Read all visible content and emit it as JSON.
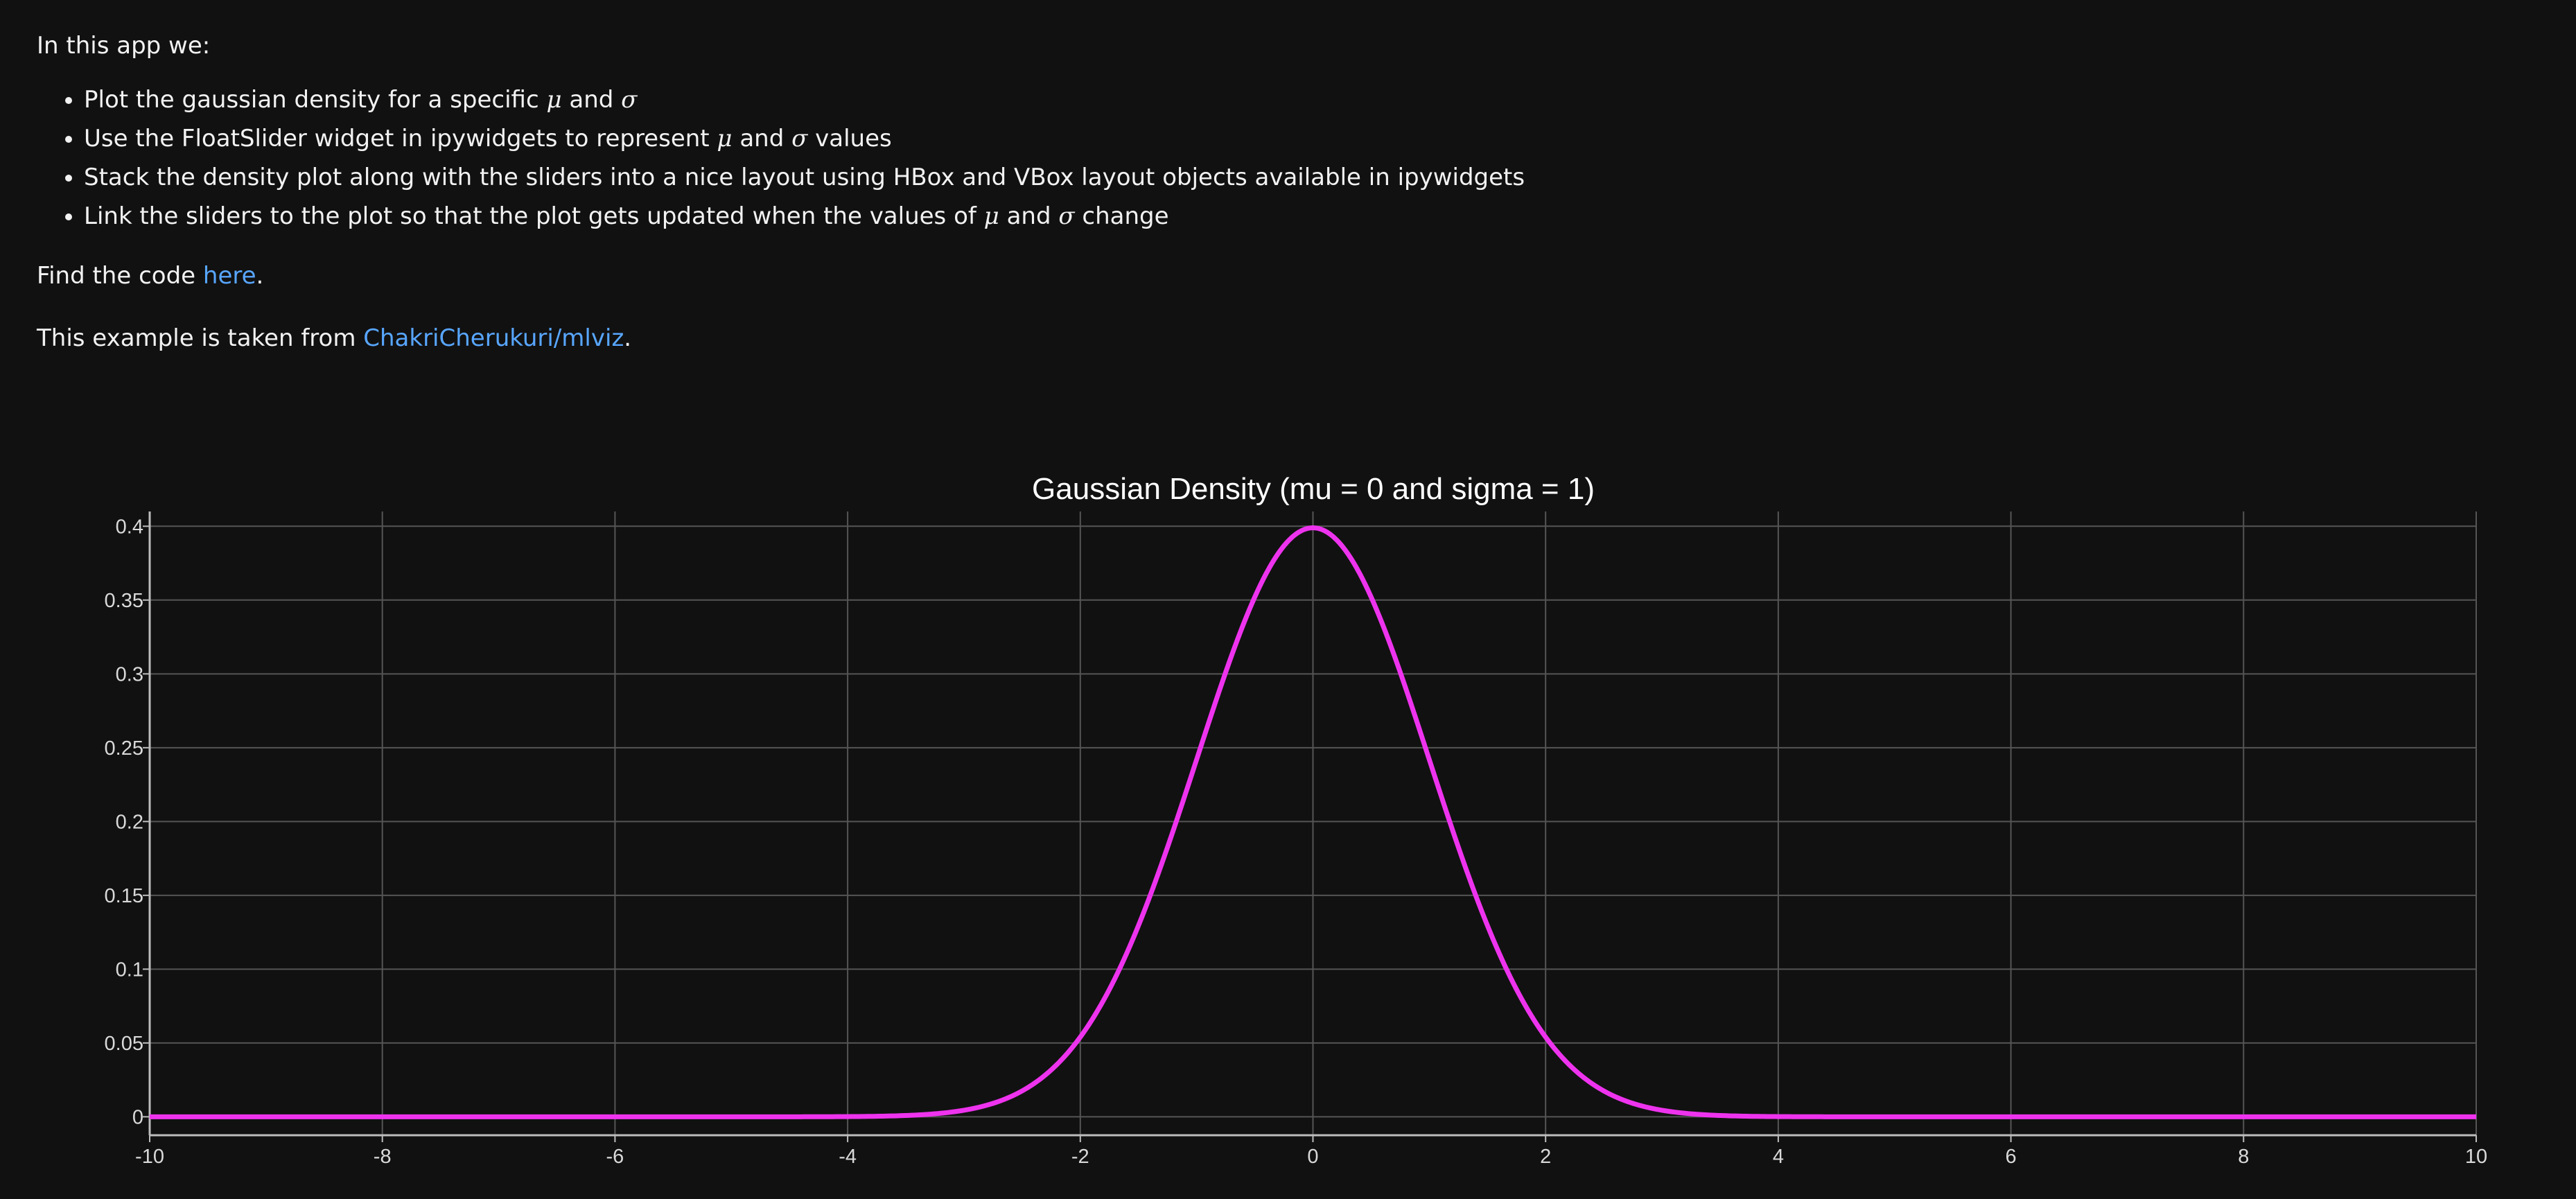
{
  "text": {
    "intro": "In this app we:",
    "bullets": [
      {
        "pre": "Plot the gaussian density for a specific ",
        "m1": "μ",
        "mid": " and ",
        "m2": "σ",
        "post": ""
      },
      {
        "pre": "Use the FloatSlider widget in ipywidgets to represent ",
        "m1": "μ",
        "mid": " and ",
        "m2": "σ",
        "post": " values"
      },
      {
        "pre": "Stack the density plot along with the sliders into a nice layout using HBox and VBox layout objects available in ipywidgets",
        "m1": "",
        "mid": "",
        "m2": "",
        "post": ""
      },
      {
        "pre": "Link the sliders to the plot so that the plot gets updated when the values of ",
        "m1": "μ",
        "mid": " and ",
        "m2": "σ",
        "post": " change"
      }
    ],
    "code_pre": "Find the code ",
    "code_link": "here",
    "code_post": ".",
    "example_pre": "This example is taken from ",
    "example_link": "ChakriCherukuri/mlviz",
    "example_post": "."
  },
  "colors": {
    "background": "#111111",
    "line": "#ee33ee",
    "grid": "#555555",
    "link": "#58a6ff"
  },
  "chart_data": {
    "type": "line",
    "title": "Gaussian Density (mu = 0 and sigma = 1)",
    "xlabel": "",
    "ylabel": "",
    "xlim": [
      -10,
      10
    ],
    "ylim": [
      -0.0125,
      0.41
    ],
    "x_ticks": [
      -10,
      -8,
      -6,
      -4,
      -2,
      0,
      2,
      4,
      6,
      8,
      10
    ],
    "x_tick_labels": [
      "-10",
      "-8",
      "-6",
      "-4",
      "-2",
      "0",
      "2",
      "4",
      "6",
      "8",
      "10"
    ],
    "y_ticks": [
      0,
      0.05,
      0.1,
      0.15,
      0.2,
      0.25,
      0.3,
      0.35,
      0.4
    ],
    "y_tick_labels": [
      "0",
      "0.05",
      "0.1",
      "0.15",
      "0.2",
      "0.25",
      "0.3",
      "0.35",
      "0.4"
    ],
    "grid": true,
    "series": [
      {
        "mu": 0,
        "sigma": 1,
        "x": [
          -10,
          -9,
          -8,
          -7,
          -6,
          -5,
          -4.5,
          -4,
          -3.5,
          -3,
          -2.75,
          -2.5,
          -2.25,
          -2,
          -1.75,
          -1.5,
          -1.25,
          -1,
          -0.75,
          -0.5,
          -0.25,
          0,
          0.25,
          0.5,
          0.75,
          1,
          1.25,
          1.5,
          1.75,
          2,
          2.25,
          2.5,
          2.75,
          3,
          3.5,
          4,
          4.5,
          5,
          6,
          7,
          8,
          9,
          10
        ],
        "y": [
          0,
          0,
          0,
          0,
          0,
          1.5e-06,
          1.6e-05,
          0.000134,
          0.000873,
          0.004432,
          0.009094,
          0.017528,
          0.03174,
          0.053991,
          0.086277,
          0.129518,
          0.182649,
          0.241971,
          0.301137,
          0.352065,
          0.386668,
          0.398942,
          0.386668,
          0.352065,
          0.301137,
          0.241971,
          0.182649,
          0.129518,
          0.086277,
          0.053991,
          0.03174,
          0.017528,
          0.009094,
          0.004432,
          0.000873,
          0.000134,
          1.6e-05,
          1.5e-06,
          0,
          0,
          0,
          0,
          0
        ]
      }
    ]
  }
}
